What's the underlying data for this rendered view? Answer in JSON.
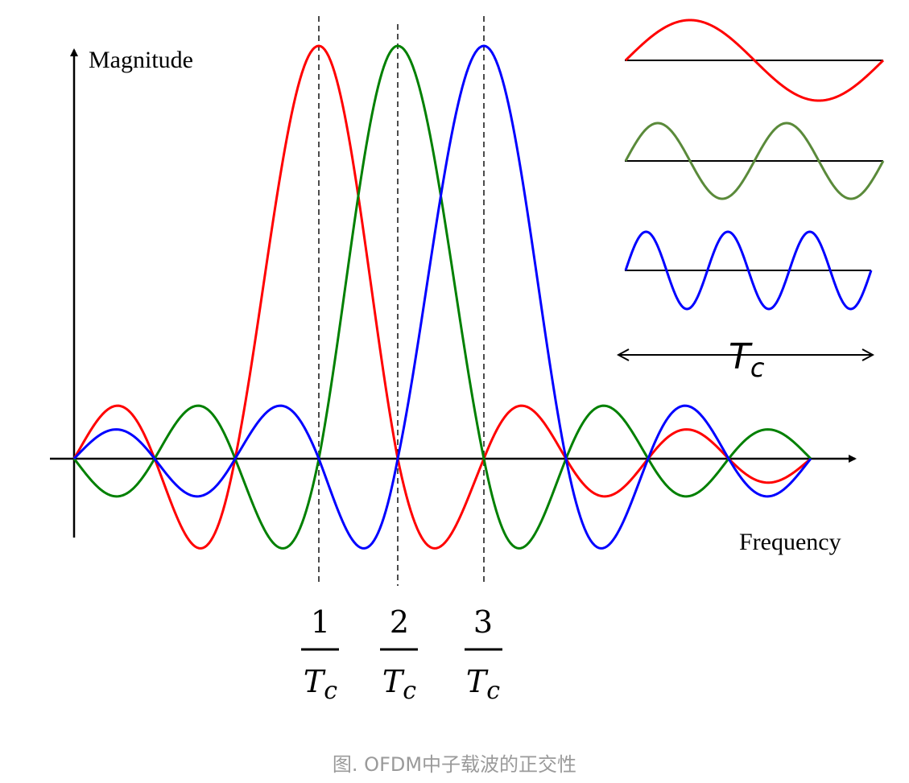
{
  "axes": {
    "y_label": "Magnitude",
    "x_label": "Frequency"
  },
  "ticks": [
    {
      "numerator": "1",
      "denominator_base": "T",
      "denominator_sub": "c"
    },
    {
      "numerator": "2",
      "denominator_base": "T",
      "denominator_sub": "c"
    },
    {
      "numerator": "3",
      "denominator_base": "T",
      "denominator_sub": "c"
    }
  ],
  "period": {
    "base": "T",
    "sub": "c"
  },
  "caption": "图. OFDM中子载波的正交性",
  "series": [
    {
      "color": "#ff0000",
      "center": 1,
      "inset_cycles": 1
    },
    {
      "color": "#008000",
      "center": 2,
      "inset_cycles": 2
    },
    {
      "color": "#0000ff",
      "center": 3,
      "inset_cycles": 3
    }
  ],
  "inset_colors": [
    "#ff0000",
    "#5a8a3a",
    "#0000ff"
  ]
}
